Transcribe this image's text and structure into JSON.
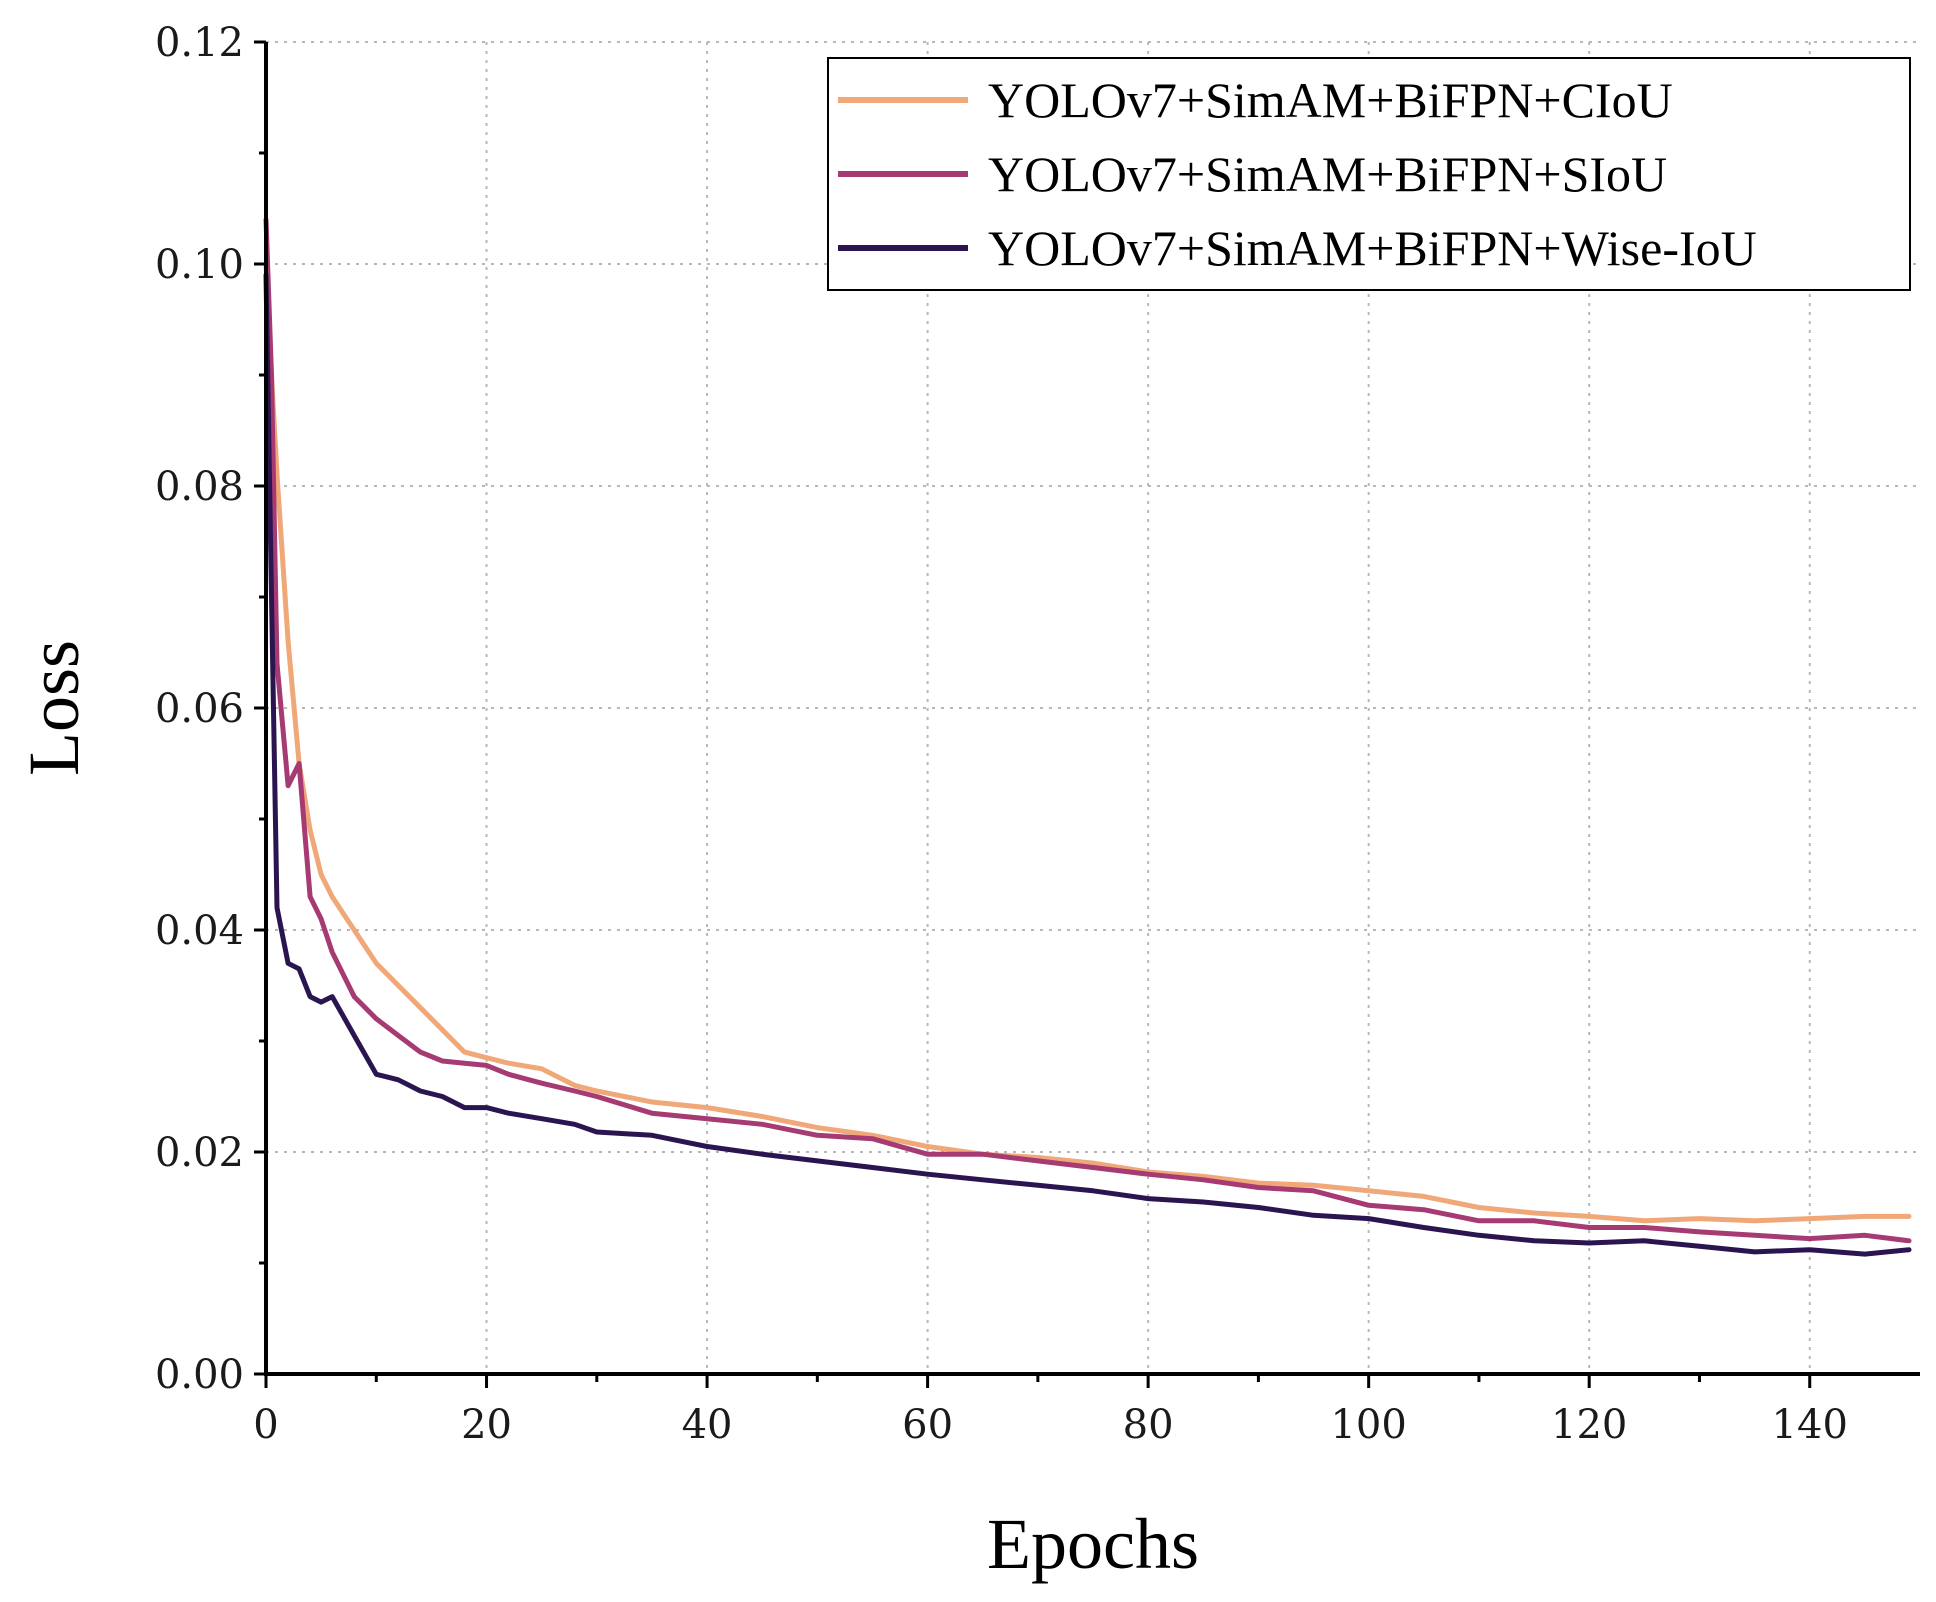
{
  "chart_data": {
    "type": "line",
    "title": "",
    "xlabel": "Epochs",
    "ylabel": "Loss",
    "xlim": [
      0,
      150
    ],
    "ylim": [
      0,
      0.12
    ],
    "xticks": [
      0,
      20,
      40,
      60,
      80,
      100,
      120,
      140
    ],
    "yticks": [
      0,
      0.02,
      0.04,
      0.06,
      0.08,
      0.1,
      0.12
    ],
    "xtick_labels": [
      "0",
      "20",
      "40",
      "60",
      "80",
      "100",
      "120",
      "140"
    ],
    "ytick_labels": [
      "0.00",
      "0.02",
      "0.04",
      "0.06",
      "0.08",
      "0.10",
      "0.12"
    ],
    "grid": true,
    "legend_position": "top-right",
    "series": [
      {
        "name": "YOLOv7+SimAM+BiFPN+CIoU",
        "color": "#f0a878",
        "x": [
          0,
          0.5,
          1,
          2,
          3,
          4,
          5,
          6,
          8,
          10,
          12,
          14,
          16,
          18,
          20,
          22,
          25,
          28,
          30,
          35,
          40,
          45,
          50,
          55,
          60,
          65,
          70,
          75,
          80,
          85,
          90,
          95,
          100,
          105,
          110,
          115,
          120,
          125,
          130,
          135,
          140,
          145,
          149
        ],
        "y": [
          0.1,
          0.09,
          0.081,
          0.066,
          0.055,
          0.049,
          0.045,
          0.043,
          0.04,
          0.037,
          0.035,
          0.033,
          0.031,
          0.029,
          0.0285,
          0.028,
          0.0275,
          0.026,
          0.0255,
          0.0245,
          0.024,
          0.0232,
          0.0222,
          0.0215,
          0.0205,
          0.0198,
          0.0195,
          0.019,
          0.0182,
          0.0178,
          0.0172,
          0.017,
          0.0165,
          0.016,
          0.015,
          0.0145,
          0.0142,
          0.0138,
          0.014,
          0.0138,
          0.014,
          0.0142,
          0.0142
        ]
      },
      {
        "name": "YOLOv7+SimAM+BiFPN+SIoU",
        "color": "#a63a72",
        "x": [
          0,
          0.5,
          1,
          2,
          3,
          4,
          5,
          6,
          8,
          10,
          12,
          14,
          16,
          18,
          20,
          22,
          25,
          28,
          30,
          35,
          40,
          45,
          50,
          55,
          60,
          65,
          70,
          75,
          80,
          85,
          90,
          95,
          100,
          105,
          110,
          115,
          120,
          125,
          130,
          135,
          140,
          145,
          149
        ],
        "y": [
          0.104,
          0.09,
          0.064,
          0.053,
          0.055,
          0.043,
          0.041,
          0.038,
          0.034,
          0.032,
          0.0305,
          0.029,
          0.0282,
          0.028,
          0.0278,
          0.027,
          0.0262,
          0.0255,
          0.025,
          0.0235,
          0.023,
          0.0225,
          0.0215,
          0.0212,
          0.0198,
          0.0198,
          0.0192,
          0.0186,
          0.018,
          0.0175,
          0.0168,
          0.0165,
          0.0152,
          0.0148,
          0.0138,
          0.0138,
          0.0132,
          0.0132,
          0.0128,
          0.0125,
          0.0122,
          0.0125,
          0.012
        ]
      },
      {
        "name": "YOLOv7+SimAM+BiFPN+Wise-IoU",
        "color": "#2a1550",
        "x": [
          0,
          0.5,
          1,
          2,
          3,
          4,
          5,
          6,
          8,
          10,
          12,
          14,
          16,
          18,
          20,
          22,
          25,
          28,
          30,
          35,
          40,
          45,
          50,
          55,
          60,
          65,
          70,
          75,
          80,
          85,
          90,
          95,
          100,
          105,
          110,
          115,
          120,
          125,
          130,
          135,
          140,
          145,
          149
        ],
        "y": [
          0.099,
          0.07,
          0.042,
          0.037,
          0.0365,
          0.034,
          0.0335,
          0.034,
          0.0305,
          0.027,
          0.0265,
          0.0255,
          0.025,
          0.024,
          0.024,
          0.0235,
          0.023,
          0.0225,
          0.0218,
          0.0215,
          0.0205,
          0.0198,
          0.0192,
          0.0186,
          0.018,
          0.0175,
          0.017,
          0.0165,
          0.0158,
          0.0155,
          0.015,
          0.0143,
          0.014,
          0.0132,
          0.0125,
          0.012,
          0.0118,
          0.012,
          0.0115,
          0.011,
          0.0112,
          0.0108,
          0.0112
        ]
      }
    ]
  }
}
